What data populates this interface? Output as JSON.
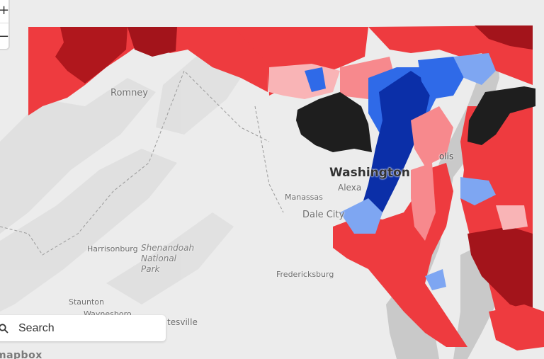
{
  "map": {
    "colors": {
      "background": "#ececec",
      "strong_red": "#a3141b",
      "red": "#ee3b3f",
      "light_red": "#f7898d",
      "pale_red": "#f9b4b6",
      "blue": "#2f6ae8",
      "dark_blue": "#0b2fa8",
      "light_blue": "#7ea6f2",
      "no_data": "#1e1e1e",
      "water": "#c9c9c9"
    },
    "places": [
      {
        "id": "romney",
        "label": "Romney"
      },
      {
        "id": "washington",
        "label": "Washington"
      },
      {
        "id": "alexandria",
        "label": "Alexa"
      },
      {
        "id": "manassas",
        "label": "Manassas"
      },
      {
        "id": "dale-city",
        "label": "Dale City"
      },
      {
        "id": "harrisonburg",
        "label": "Harrisonburg"
      },
      {
        "id": "shenandoah",
        "label": "Shenandoah National Park"
      },
      {
        "id": "fredericksburg",
        "label": "Fredericksburg"
      },
      {
        "id": "staunton",
        "label": "Staunton"
      },
      {
        "id": "waynesboro",
        "label": "Waynesboro"
      },
      {
        "id": "charlottesville",
        "label": "tesville"
      },
      {
        "id": "annapolis",
        "label": "olis"
      }
    ]
  },
  "controls": {
    "zoom_in": "+",
    "zoom_out": "−",
    "search_placeholder": "Search",
    "logo": "mapbox"
  }
}
